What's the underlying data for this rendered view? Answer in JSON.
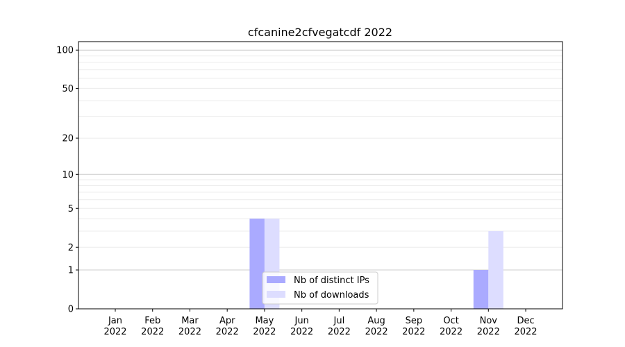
{
  "chart_data": {
    "type": "bar",
    "title": "cfcanine2cfvegatcdf 2022",
    "xlabel": "",
    "ylabel": "",
    "y_scale": "log(1+x)",
    "ylim": [
      0,
      116
    ],
    "grid": "horizontal, major and minor",
    "legend_placement": "lower-center",
    "categories": [
      [
        "Jan",
        "2022"
      ],
      [
        "Feb",
        "2022"
      ],
      [
        "Mar",
        "2022"
      ],
      [
        "Apr",
        "2022"
      ],
      [
        "May",
        "2022"
      ],
      [
        "Jun",
        "2022"
      ],
      [
        "Jul",
        "2022"
      ],
      [
        "Aug",
        "2022"
      ],
      [
        "Sep",
        "2022"
      ],
      [
        "Oct",
        "2022"
      ],
      [
        "Nov",
        "2022"
      ],
      [
        "Dec",
        "2022"
      ]
    ],
    "y_ticks": [
      0,
      1,
      2,
      5,
      10,
      20,
      50,
      100
    ],
    "series": [
      {
        "name": "Nb of distinct IPs",
        "color": "#aaaaff",
        "values": [
          0,
          0,
          0,
          0,
          4,
          0,
          0,
          0,
          0,
          0,
          1,
          0
        ]
      },
      {
        "name": "Nb of downloads",
        "color": "#ddddff",
        "values": [
          0,
          0,
          0,
          0,
          4,
          0,
          0,
          0,
          0,
          0,
          3,
          0
        ]
      }
    ]
  }
}
